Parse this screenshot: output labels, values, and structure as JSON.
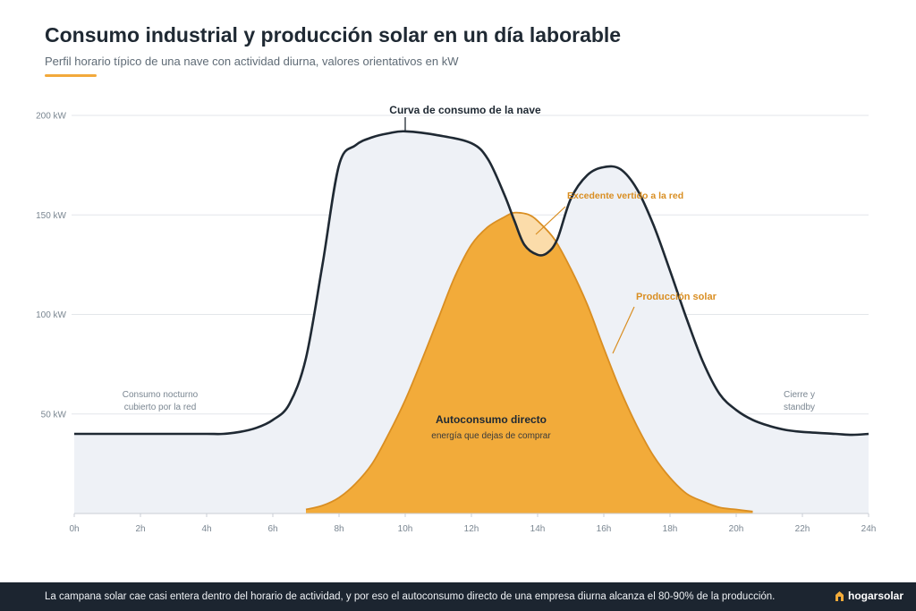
{
  "title": "Consumo industrial y producción solar en un día laborable",
  "subtitle": "Perfil horario típico de una nave con actividad diurna, valores orientativos en kW",
  "colors": {
    "consumption_line": "#1f2933",
    "consumption_fill": "#eef1f6",
    "solar_fill": "#f2ab3a",
    "solar_stroke": "#d98e22",
    "surplus_fill": "#fbdcaa",
    "accent": "#f2a93b",
    "grid": "#e3e6ea",
    "footer_bg": "#1c2530"
  },
  "chart_data": {
    "type": "area",
    "xlim": [
      0,
      24
    ],
    "ylim": [
      0,
      200
    ],
    "x_ticks": [
      0,
      2,
      4,
      6,
      8,
      10,
      12,
      14,
      16,
      18,
      20,
      22,
      24
    ],
    "x_tick_labels": [
      "0h",
      "2h",
      "4h",
      "6h",
      "8h",
      "10h",
      "12h",
      "14h",
      "16h",
      "18h",
      "20h",
      "22h",
      "24h"
    ],
    "y_ticks": [
      50,
      100,
      150,
      200
    ],
    "y_tick_labels": [
      "50 kW",
      "100 kW",
      "150 kW",
      "200 kW"
    ],
    "grid": true,
    "series": [
      {
        "id": "consumo",
        "x": [
          0,
          1,
          2,
          3,
          4,
          4.5,
          5,
          5.5,
          6,
          6.5,
          7,
          7.5,
          8,
          8.5,
          9,
          9.5,
          10,
          11,
          12,
          12.5,
          13,
          13.3,
          13.6,
          14,
          14.3,
          14.6,
          15,
          15.5,
          16,
          16.5,
          17,
          17.5,
          18,
          18.5,
          19,
          19.5,
          20,
          20.5,
          21,
          21.5,
          22,
          23,
          23.5,
          24
        ],
        "y": [
          40,
          40,
          40,
          40,
          40,
          40,
          41,
          43,
          47,
          55,
          78,
          125,
          175,
          185,
          189,
          191,
          192,
          190,
          186,
          178,
          160,
          147,
          135,
          130,
          131,
          138,
          158,
          170,
          174,
          173,
          163,
          145,
          122,
          98,
          76,
          60,
          52,
          47,
          44,
          42,
          41,
          40,
          39.5,
          40
        ]
      },
      {
        "name": "Producción solar",
        "x": [
          7,
          7.5,
          8,
          8.5,
          9,
          9.5,
          10,
          10.5,
          11,
          11.5,
          12,
          12.5,
          13,
          13.25,
          13.5,
          13.75,
          14,
          14.5,
          15,
          15.5,
          16,
          16.5,
          17,
          17.5,
          18,
          18.5,
          19,
          19.5,
          20,
          20.5
        ],
        "y": [
          2,
          4,
          8,
          15,
          25,
          40,
          57,
          77,
          98,
          119,
          135,
          144,
          149,
          151,
          151,
          150,
          147,
          138,
          123,
          105,
          83,
          62,
          44,
          29,
          18,
          10,
          6,
          3,
          2,
          1
        ]
      }
    ],
    "annotations": {
      "consumption_curve": "Curva de consumo de la nave",
      "surplus": "Excedente vertido a la red",
      "solar": "Producción solar",
      "self_consumption": "Autoconsumo directo",
      "self_consumption_sub": "energía que dejas de comprar",
      "night_line1": "Consumo nocturno",
      "night_line2": "cubierto por la red",
      "close_line1": "Cierre y",
      "close_line2": "standby"
    }
  },
  "footer": {
    "text": "La campana solar cae casi entera dentro del horario de actividad, y por eso el autoconsumo directo de una empresa diurna alcanza el 80-90% de la producción.",
    "brand": "hogarsolar"
  }
}
